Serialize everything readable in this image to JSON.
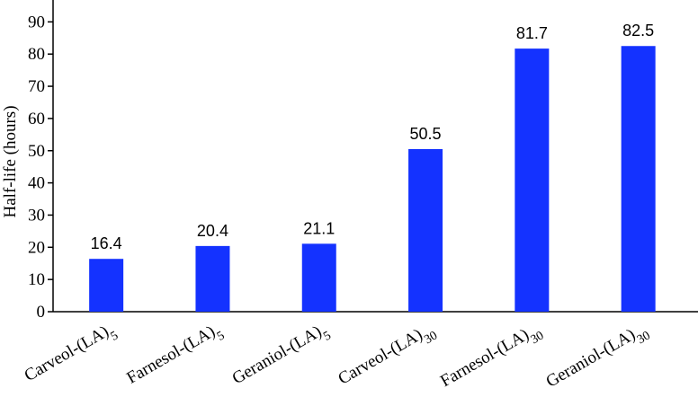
{
  "chart_data": {
    "type": "bar",
    "ylabel": "Half-life (hours)",
    "xlabel": "",
    "ylim": [
      0,
      95
    ],
    "yticks": [
      0,
      10,
      20,
      30,
      40,
      50,
      60,
      70,
      80,
      90
    ],
    "categories": [
      {
        "base": "Carveol-(LA)",
        "sub": "5"
      },
      {
        "base": "Farnesol-(LA)",
        "sub": "5"
      },
      {
        "base": "Geraniol-(LA)",
        "sub": "5"
      },
      {
        "base": "Carveol-(LA)",
        "sub": "30"
      },
      {
        "base": "Farnesol-(LA)",
        "sub": "30"
      },
      {
        "base": "Geraniol-(LA)",
        "sub": "30"
      }
    ],
    "values": [
      16.4,
      20.4,
      21.1,
      50.5,
      81.7,
      82.5
    ],
    "data_labels": [
      "16.4",
      "20.4",
      "21.1",
      "50.5",
      "81.7",
      "82.5"
    ],
    "bar_color": "#1432ff",
    "grid": false,
    "legend": "none"
  }
}
